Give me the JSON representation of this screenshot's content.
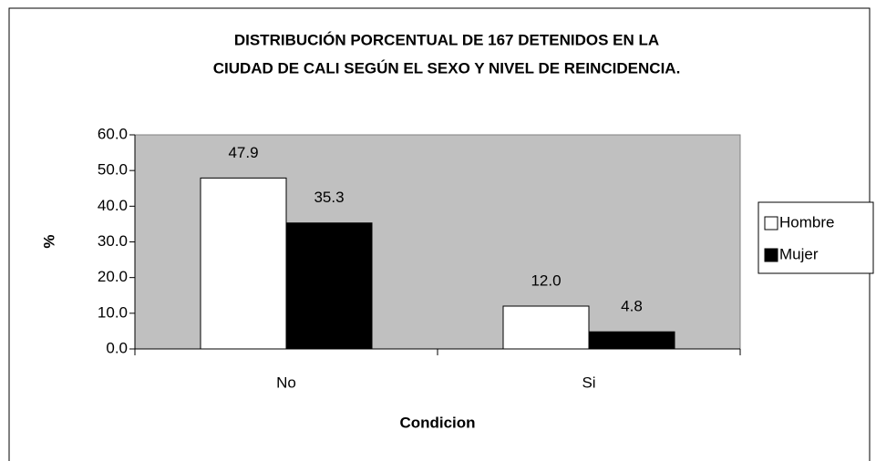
{
  "chart_data": {
    "type": "bar",
    "title": [
      "DISTRIBUCIÓN PORCENTUAL DE 167 DETENIDOS EN LA",
      "CIUDAD DE CALI SEGÚN EL SEXO Y NIVEL DE REINCIDENCIA."
    ],
    "x_label": "Condicion",
    "y_label": "%",
    "categories": [
      "No",
      "Si"
    ],
    "series": [
      {
        "name": "Hombre",
        "color": "#ffffff",
        "values": [
          47.9,
          12.0
        ],
        "value_labels": [
          "47.9",
          "12.0"
        ]
      },
      {
        "name": "Mujer",
        "color": "#000000",
        "values": [
          35.3,
          4.8
        ],
        "value_labels": [
          "35.3",
          "4.8"
        ]
      }
    ],
    "ylim": [
      0,
      60
    ],
    "yticks": [
      {
        "value": 0,
        "label": "0.0"
      },
      {
        "value": 10,
        "label": "10.0"
      },
      {
        "value": 20,
        "label": "20.0"
      },
      {
        "value": 30,
        "label": "30.0"
      },
      {
        "value": 40,
        "label": "40.0"
      },
      {
        "value": 50,
        "label": "50.0"
      },
      {
        "value": 60,
        "label": "60.0"
      }
    ],
    "legend": "right",
    "plot_background": "#c0c0c0"
  }
}
